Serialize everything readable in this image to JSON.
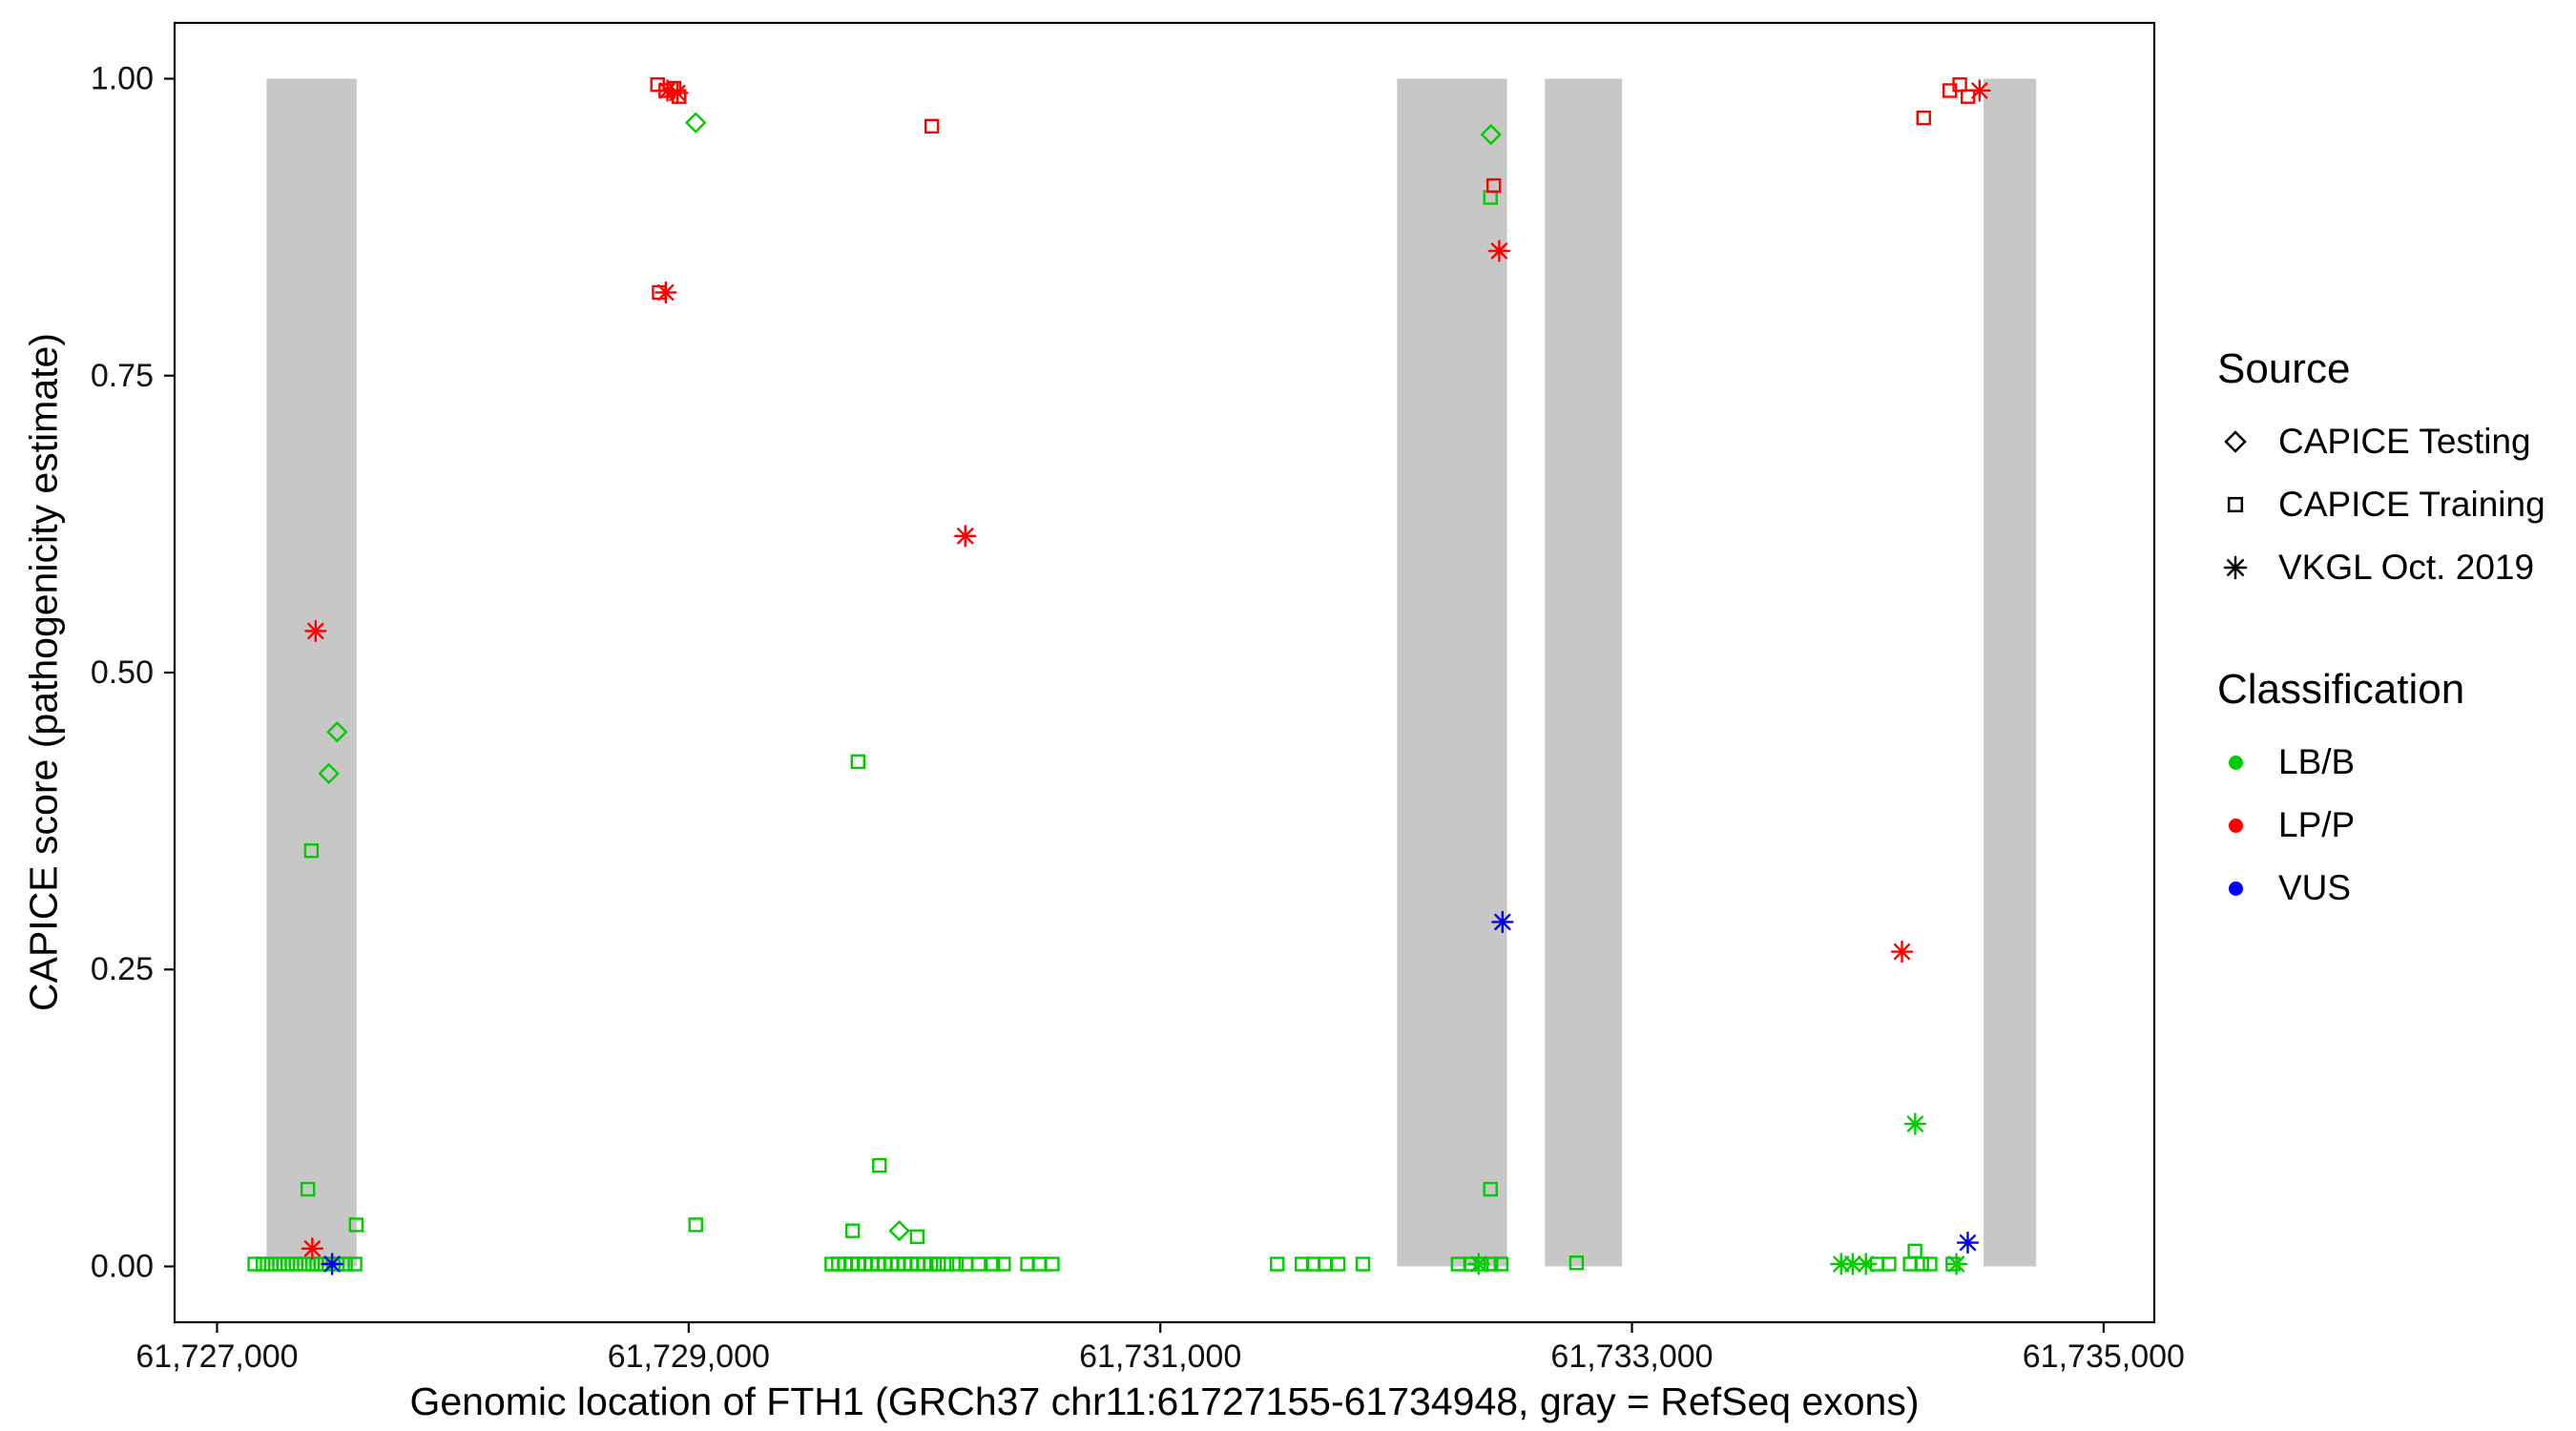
{
  "colors": {
    "lb_b": "#00CC00",
    "lp_p": "#FF0000",
    "vus": "#0000FF",
    "exon": "#C7C7C7",
    "axis": "#000000",
    "background": "#FFFFFF"
  },
  "legend": {
    "source": {
      "title": "Source",
      "items": [
        {
          "label": "CAPICE Testing",
          "shape": "diamond",
          "slug": "capice-testing"
        },
        {
          "label": "CAPICE Training",
          "shape": "square",
          "slug": "capice-training"
        },
        {
          "label": "VKGL Oct. 2019",
          "shape": "asterisk",
          "slug": "vkgl-oct-2019"
        }
      ]
    },
    "classification": {
      "title": "Classification",
      "items": [
        {
          "label": "LB/B",
          "color": "#00CC00",
          "slug": "lb-b"
        },
        {
          "label": "LP/P",
          "color": "#FF0000",
          "slug": "lp-p"
        },
        {
          "label": "VUS",
          "color": "#0000FF",
          "slug": "vus"
        }
      ]
    }
  },
  "chart_data": {
    "type": "scatter",
    "xlabel": "Genomic location of FTH1 (GRCh37 chr11:61727155-61734948, gray = RefSeq exons)",
    "ylabel": "CAPICE score (pathogenicity estimate)",
    "x_domain": [
      61726820,
      61735215
    ],
    "y_domain": [
      -0.047,
      1.047
    ],
    "x_ticks": [
      {
        "value": 61727000,
        "label": "61,727,000"
      },
      {
        "value": 61729000,
        "label": "61,729,000"
      },
      {
        "value": 61731000,
        "label": "61,731,000"
      },
      {
        "value": 61733000,
        "label": "61,733,000"
      },
      {
        "value": 61735000,
        "label": "61,735,000"
      }
    ],
    "y_ticks": [
      {
        "value": 0.0,
        "label": "0.00"
      },
      {
        "value": 0.25,
        "label": "0.25"
      },
      {
        "value": 0.5,
        "label": "0.50"
      },
      {
        "value": 0.75,
        "label": "0.75"
      },
      {
        "value": 1.0,
        "label": "1.00"
      }
    ],
    "exon_y": [
      0.0,
      1.0
    ],
    "exon_bands": [
      [
        61727210,
        61727592
      ],
      [
        61732004,
        61732470
      ],
      [
        61732631,
        61732958
      ],
      [
        61734491,
        61734714
      ]
    ],
    "series": [
      {
        "name": "CAPICE Training / LB/B",
        "source": "CAPICE Training",
        "classification": "LB/B",
        "shape": "square",
        "color": "#00CC00",
        "points": [
          [
            61727160,
            0.002
          ],
          [
            61727195,
            0.002
          ],
          [
            61727230,
            0.002
          ],
          [
            61727265,
            0.002
          ],
          [
            61727300,
            0.002
          ],
          [
            61727335,
            0.002
          ],
          [
            61727370,
            0.002
          ],
          [
            61727405,
            0.002
          ],
          [
            61727440,
            0.002
          ],
          [
            61727475,
            0.002
          ],
          [
            61727510,
            0.002
          ],
          [
            61727545,
            0.002
          ],
          [
            61727585,
            0.002
          ],
          [
            61727385,
            0.065
          ],
          [
            61727400,
            0.35
          ],
          [
            61727590,
            0.035
          ],
          [
            61729030,
            0.035
          ],
          [
            61729695,
            0.03
          ],
          [
            61729718,
            0.425
          ],
          [
            61729809,
            0.085
          ],
          [
            61729969,
            0.025
          ],
          [
            61729607,
            0.002
          ],
          [
            61729635,
            0.002
          ],
          [
            61729663,
            0.002
          ],
          [
            61729691,
            0.002
          ],
          [
            61729719,
            0.002
          ],
          [
            61729747,
            0.002
          ],
          [
            61729775,
            0.002
          ],
          [
            61729803,
            0.002
          ],
          [
            61729831,
            0.002
          ],
          [
            61729859,
            0.002
          ],
          [
            61729887,
            0.002
          ],
          [
            61729915,
            0.002
          ],
          [
            61729943,
            0.002
          ],
          [
            61729971,
            0.002
          ],
          [
            61729999,
            0.002
          ],
          [
            61730027,
            0.002
          ],
          [
            61730060,
            0.002
          ],
          [
            61730095,
            0.002
          ],
          [
            61730135,
            0.002
          ],
          [
            61730175,
            0.002
          ],
          [
            61730230,
            0.002
          ],
          [
            61730290,
            0.002
          ],
          [
            61730335,
            0.002
          ],
          [
            61730437,
            0.002
          ],
          [
            61730486,
            0.002
          ],
          [
            61730542,
            0.002
          ],
          [
            61731496,
            0.002
          ],
          [
            61731601,
            0.002
          ],
          [
            61731649,
            0.002
          ],
          [
            61731698,
            0.002
          ],
          [
            61731754,
            0.002
          ],
          [
            61731859,
            0.002
          ],
          [
            61732400,
            0.9
          ],
          [
            61732400,
            0.065
          ],
          [
            61732263,
            0.002
          ],
          [
            61732319,
            0.002
          ],
          [
            61732361,
            0.002
          ],
          [
            61732402,
            0.002
          ],
          [
            61732445,
            0.002
          ],
          [
            61732765,
            0.003
          ],
          [
            61734040,
            0.002
          ],
          [
            61734090,
            0.002
          ],
          [
            61734180,
            0.002
          ],
          [
            61734229,
            0.002
          ],
          [
            61734264,
            0.002
          ],
          [
            61734361,
            0.002
          ],
          [
            61734200,
            0.013
          ]
        ]
      },
      {
        "name": "CAPICE Testing / LB/B",
        "source": "CAPICE Testing",
        "classification": "LB/B",
        "shape": "diamond",
        "color": "#00CC00",
        "points": [
          [
            61727474,
            0.415
          ],
          [
            61727509,
            0.45
          ],
          [
            61729030,
            0.963
          ],
          [
            61729893,
            0.03
          ],
          [
            61732402,
            0.953
          ]
        ]
      },
      {
        "name": "CAPICE Training / LP/P",
        "source": "CAPICE Training",
        "classification": "LP/P",
        "shape": "square",
        "color": "#FF0000",
        "points": [
          [
            61728868,
            0.995
          ],
          [
            61728903,
            0.99
          ],
          [
            61728938,
            0.992
          ],
          [
            61728959,
            0.985
          ],
          [
            61728875,
            0.82
          ],
          [
            61730031,
            0.96
          ],
          [
            61732414,
            0.91
          ],
          [
            61734237,
            0.967
          ],
          [
            61734348,
            0.99
          ],
          [
            61734390,
            0.995
          ],
          [
            61734425,
            0.985
          ]
        ]
      },
      {
        "name": "VKGL Oct. 2019 / LP/P",
        "source": "VKGL Oct. 2019",
        "classification": "LP/P",
        "shape": "asterisk",
        "color": "#FF0000",
        "points": [
          [
            61727418,
            0.535
          ],
          [
            61727404,
            0.015
          ],
          [
            61728910,
            0.99
          ],
          [
            61728952,
            0.988
          ],
          [
            61728903,
            0.82
          ],
          [
            61730173,
            0.615
          ],
          [
            61732437,
            0.855
          ],
          [
            61734145,
            0.265
          ],
          [
            61734474,
            0.99
          ]
        ]
      },
      {
        "name": "VKGL Oct. 2019 / LB/B",
        "source": "VKGL Oct. 2019",
        "classification": "LB/B",
        "shape": "asterisk",
        "color": "#00CC00",
        "points": [
          [
            61732350,
            0.002
          ],
          [
            61733887,
            0.002
          ],
          [
            61733936,
            0.002
          ],
          [
            61733992,
            0.002
          ],
          [
            61734201,
            0.12
          ],
          [
            61734376,
            0.002
          ]
        ]
      },
      {
        "name": "VKGL Oct. 2019 / VUS",
        "source": "VKGL Oct. 2019",
        "classification": "VUS",
        "shape": "asterisk",
        "color": "#0000FF",
        "points": [
          [
            61727488,
            0.002
          ],
          [
            61732451,
            0.29
          ],
          [
            61734424,
            0.02
          ]
        ]
      }
    ]
  }
}
